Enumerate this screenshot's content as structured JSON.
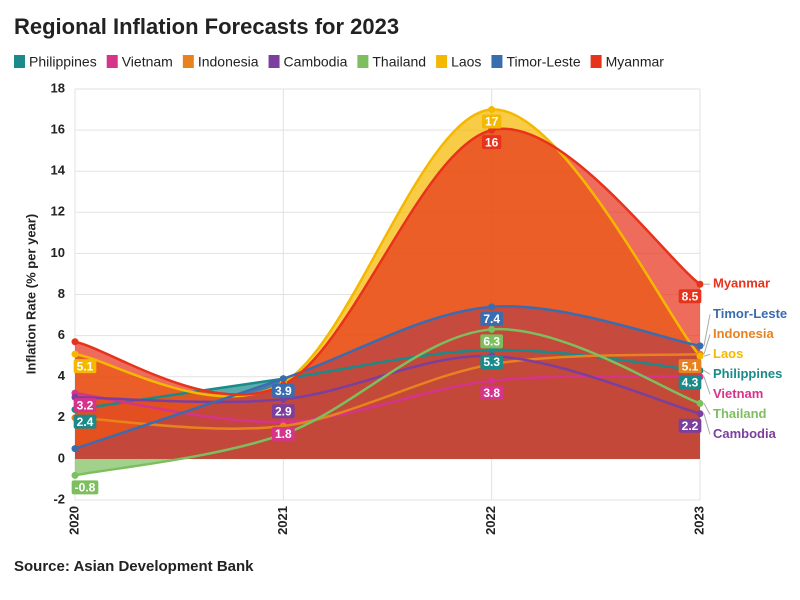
{
  "chart_data": {
    "type": "area",
    "title": "Regional Inflation Forecasts for 2023",
    "y_label": "Inflation Rate (% per year)",
    "source": "Source: Asian Development Bank",
    "categories": [
      "2020",
      "2021",
      "2022",
      "2023"
    ],
    "ylim": [
      -2,
      18
    ],
    "yticks": [
      -2,
      0,
      2,
      4,
      6,
      8,
      10,
      12,
      14,
      16,
      18
    ],
    "grid": true,
    "legend": "top",
    "series": [
      {
        "name": "Philippines",
        "color": "#1a8a8a",
        "values": [
          2.4,
          3.9,
          5.3,
          4.3
        ],
        "value_labels": [
          "2.4",
          null,
          "5.3",
          "4.3"
        ]
      },
      {
        "name": "Vietnam",
        "color": "#d6338a",
        "values": [
          3.2,
          1.8,
          3.8,
          4.0
        ],
        "value_labels": [
          "3.2",
          "1.8",
          "3.8",
          null
        ]
      },
      {
        "name": "Indonesia",
        "color": "#e8821e",
        "values": [
          2.0,
          1.6,
          4.6,
          5.1
        ],
        "value_labels": [
          null,
          null,
          null,
          "5.1"
        ]
      },
      {
        "name": "Cambodia",
        "color": "#7b3f9e",
        "values": [
          3.0,
          2.9,
          5.0,
          2.2
        ],
        "value_labels": [
          null,
          "2.9",
          null,
          "2.2"
        ]
      },
      {
        "name": "Thailand",
        "color": "#7dbf5e",
        "values": [
          -0.8,
          1.2,
          6.3,
          2.7
        ],
        "value_labels": [
          "-0.8",
          null,
          "6.3",
          null
        ]
      },
      {
        "name": "Laos",
        "color": "#f5b800",
        "values": [
          5.1,
          3.7,
          17,
          5.0
        ],
        "value_labels": [
          "5.1",
          null,
          "17",
          null
        ]
      },
      {
        "name": "Timor-Leste",
        "color": "#3a6cb0",
        "values": [
          0.5,
          3.9,
          7.4,
          5.5
        ],
        "value_labels": [
          null,
          "3.9",
          "7.4",
          null
        ]
      },
      {
        "name": "Myanmar",
        "color": "#e8331c",
        "values": [
          5.7,
          3.6,
          16,
          8.5
        ],
        "value_labels": [
          null,
          null,
          "16",
          "8.5"
        ]
      }
    ]
  }
}
